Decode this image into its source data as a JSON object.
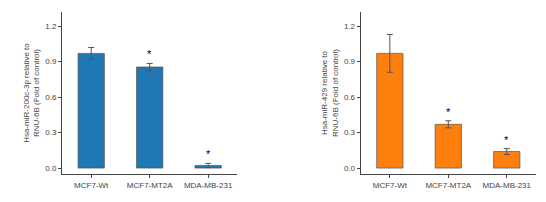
{
  "chart_data": [
    {
      "type": "bar",
      "categories": [
        "MCF7-Wt",
        "MCF7-MT2A",
        "MDA-MB-231"
      ],
      "values": [
        0.97,
        0.855,
        0.022
      ],
      "errors": [
        0.05,
        0.03,
        0.018
      ],
      "ylabel": "Hsa-miR-200c-3p relative to\nRNU-6B (Fold of control)",
      "ylim": [
        -0.05,
        1.32
      ],
      "yticks": [
        {
          "value": 0.0,
          "label": "0.0"
        },
        0.3,
        0.6,
        0.9,
        1.2
      ],
      "annotations": [
        {
          "category": "MCF7-MT2A",
          "text": "*"
        },
        {
          "category": "MDA-MB-231",
          "text": "*"
        }
      ],
      "grid": false
    },
    {
      "type": "bar",
      "categories": [
        "MCF7-Wt",
        "MCF7-MT2A",
        "MDA-MB-231"
      ],
      "values": [
        0.97,
        0.37,
        0.14
      ],
      "errors": [
        0.16,
        0.03,
        0.025
      ],
      "ylabel": "Hsa-miR-429 relative to\nRNU-6B (Fold of control)",
      "ylim": [
        -0.05,
        1.32
      ],
      "yticks": [
        {
          "value": 0.0,
          "label": "0.0"
        },
        0.3,
        0.6,
        0.9,
        1.2
      ],
      "annotations": [
        {
          "category": "MCF7-MT2A",
          "text": "*"
        },
        {
          "category": "MDA-MB-231",
          "text": "*"
        }
      ],
      "grid": false
    }
  ]
}
